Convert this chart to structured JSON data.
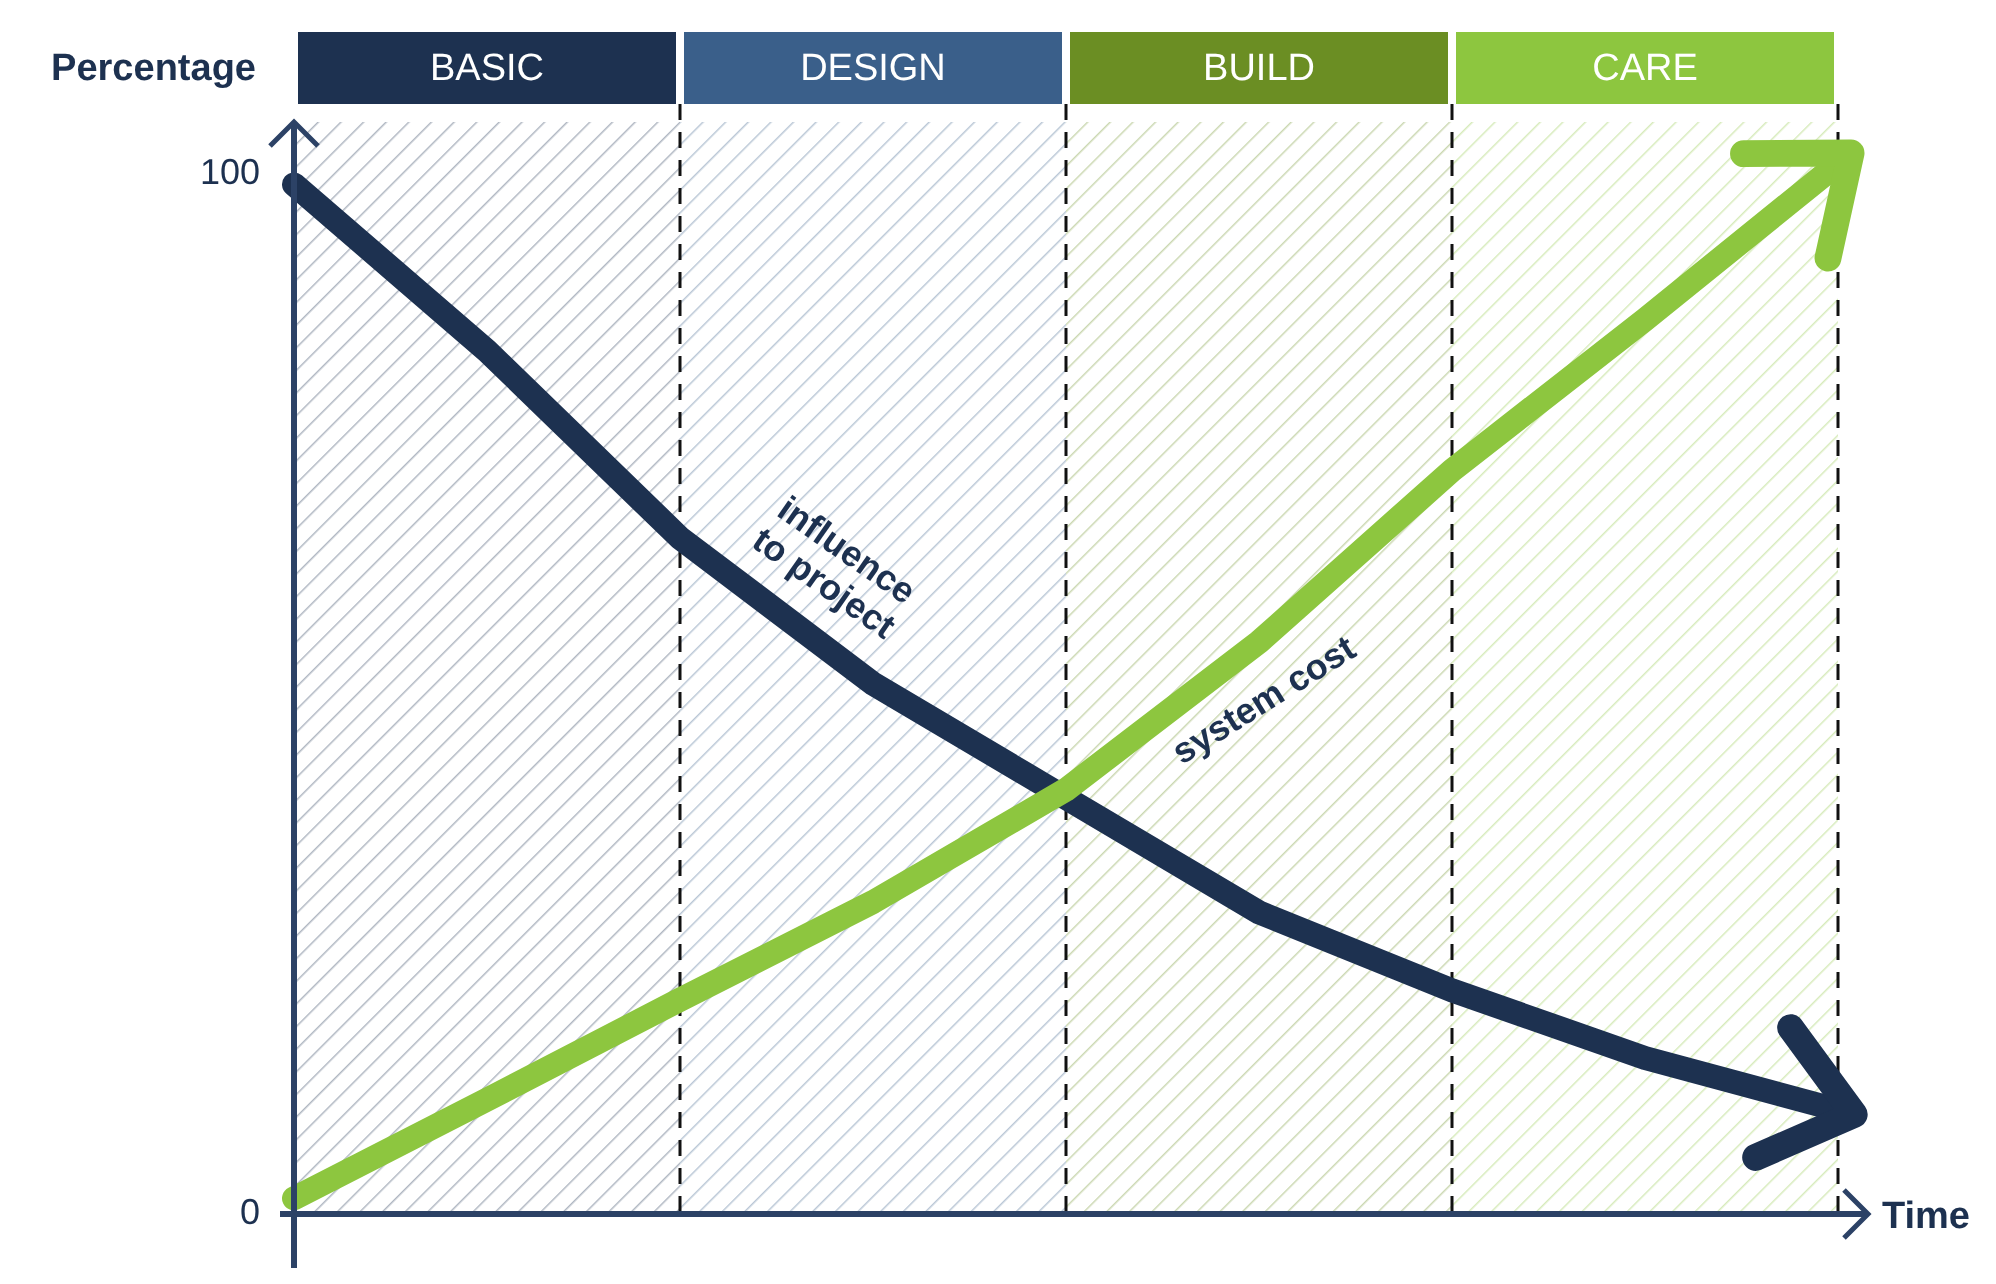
{
  "chart_data": {
    "type": "line",
    "xlabel": "Time",
    "ylabel": "Percentage",
    "ylim": [
      0,
      105
    ],
    "yticks": [
      0,
      100
    ],
    "tick_labels": "y",
    "grid": "x",
    "line_style": "solid",
    "categories": [
      null,
      null,
      null,
      null,
      null,
      null,
      null,
      null,
      null
    ],
    "series": [
      {
        "color": "#1d3150",
        "values": [
          99,
          83,
          65,
          51,
          40,
          29,
          21.5,
          15,
          10
        ]
      },
      {
        "color": "#8dc63f",
        "values": [
          1.5,
          11,
          20.6,
          30,
          40.8,
          55,
          71.5,
          86,
          101
        ]
      }
    ],
    "annotations": [
      "BASIC",
      "DESIGN",
      "BUILD",
      "CARE",
      "influence to project",
      "system cost"
    ]
  }
}
